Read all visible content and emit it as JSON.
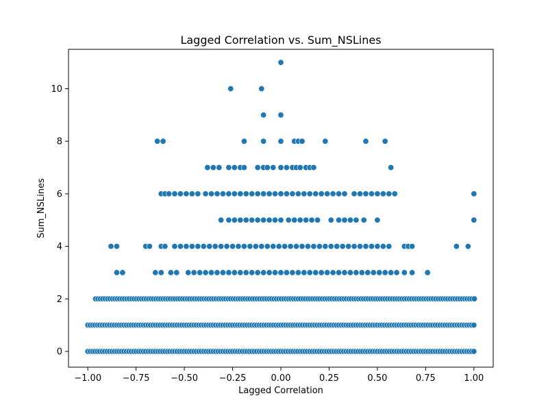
{
  "chart_data": {
    "type": "scatter",
    "title": "Lagged Correlation vs. Sum_NSLines",
    "xlabel": "Lagged Correlation",
    "ylabel": "Sum_NSLines",
    "xlim": [
      -1.1,
      1.1
    ],
    "ylim": [
      -0.6,
      11.5
    ],
    "x_ticks": [
      -1.0,
      -0.75,
      -0.5,
      -0.25,
      0.0,
      0.25,
      0.5,
      0.75,
      1.0
    ],
    "x_tick_labels": [
      "−1.00",
      "−0.75",
      "−0.50",
      "−0.25",
      "0.00",
      "0.25",
      "0.50",
      "0.75",
      "1.00"
    ],
    "y_ticks": [
      0,
      2,
      4,
      6,
      8,
      10
    ],
    "y_tick_labels": [
      "0",
      "2",
      "4",
      "6",
      "8",
      "10"
    ],
    "grid": false,
    "marker_color": "#1f77b4",
    "rows": [
      {
        "y": 0,
        "x_min": -1.0,
        "x_max": 1.0,
        "step": 0.0125
      },
      {
        "y": 1,
        "x_min": -1.0,
        "x_max": 1.0,
        "step": 0.0125
      },
      {
        "y": 2,
        "x_min": -0.96,
        "x_max": 1.0,
        "step": 0.0125
      }
    ],
    "points": [
      {
        "x": -0.85,
        "y": 3
      },
      {
        "x": -0.82,
        "y": 3
      },
      {
        "x": -0.65,
        "y": 3
      },
      {
        "x": -0.62,
        "y": 3
      },
      {
        "x": -0.57,
        "y": 3
      },
      {
        "x": -0.54,
        "y": 3
      },
      {
        "x": -0.48,
        "y": 3
      },
      {
        "x": -0.45,
        "y": 3
      },
      {
        "x": -0.42,
        "y": 3
      },
      {
        "x": -0.39,
        "y": 3
      },
      {
        "x": -0.36,
        "y": 3
      },
      {
        "x": -0.33,
        "y": 3
      },
      {
        "x": -0.3,
        "y": 3
      },
      {
        "x": -0.27,
        "y": 3
      },
      {
        "x": -0.24,
        "y": 3
      },
      {
        "x": -0.21,
        "y": 3
      },
      {
        "x": -0.18,
        "y": 3
      },
      {
        "x": -0.15,
        "y": 3
      },
      {
        "x": -0.12,
        "y": 3
      },
      {
        "x": -0.09,
        "y": 3
      },
      {
        "x": -0.06,
        "y": 3
      },
      {
        "x": -0.03,
        "y": 3
      },
      {
        "x": 0.0,
        "y": 3
      },
      {
        "x": 0.03,
        "y": 3
      },
      {
        "x": 0.06,
        "y": 3
      },
      {
        "x": 0.09,
        "y": 3
      },
      {
        "x": 0.12,
        "y": 3
      },
      {
        "x": 0.15,
        "y": 3
      },
      {
        "x": 0.18,
        "y": 3
      },
      {
        "x": 0.21,
        "y": 3
      },
      {
        "x": 0.24,
        "y": 3
      },
      {
        "x": 0.27,
        "y": 3
      },
      {
        "x": 0.3,
        "y": 3
      },
      {
        "x": 0.33,
        "y": 3
      },
      {
        "x": 0.36,
        "y": 3
      },
      {
        "x": 0.39,
        "y": 3
      },
      {
        "x": 0.42,
        "y": 3
      },
      {
        "x": 0.45,
        "y": 3
      },
      {
        "x": 0.48,
        "y": 3
      },
      {
        "x": 0.51,
        "y": 3
      },
      {
        "x": 0.54,
        "y": 3
      },
      {
        "x": 0.57,
        "y": 3
      },
      {
        "x": 0.6,
        "y": 3
      },
      {
        "x": 0.64,
        "y": 3
      },
      {
        "x": 0.68,
        "y": 3
      },
      {
        "x": 0.76,
        "y": 3
      },
      {
        "x": -0.88,
        "y": 4
      },
      {
        "x": -0.85,
        "y": 4
      },
      {
        "x": -0.7,
        "y": 4
      },
      {
        "x": -0.68,
        "y": 4
      },
      {
        "x": -0.62,
        "y": 4
      },
      {
        "x": -0.6,
        "y": 4
      },
      {
        "x": -0.55,
        "y": 4
      },
      {
        "x": -0.52,
        "y": 4
      },
      {
        "x": -0.49,
        "y": 4
      },
      {
        "x": -0.46,
        "y": 4
      },
      {
        "x": -0.43,
        "y": 4
      },
      {
        "x": -0.4,
        "y": 4
      },
      {
        "x": -0.37,
        "y": 4
      },
      {
        "x": -0.34,
        "y": 4
      },
      {
        "x": -0.31,
        "y": 4
      },
      {
        "x": -0.28,
        "y": 4
      },
      {
        "x": -0.25,
        "y": 4
      },
      {
        "x": -0.22,
        "y": 4
      },
      {
        "x": -0.19,
        "y": 4
      },
      {
        "x": -0.16,
        "y": 4
      },
      {
        "x": -0.13,
        "y": 4
      },
      {
        "x": -0.1,
        "y": 4
      },
      {
        "x": -0.07,
        "y": 4
      },
      {
        "x": -0.04,
        "y": 4
      },
      {
        "x": -0.01,
        "y": 4
      },
      {
        "x": 0.02,
        "y": 4
      },
      {
        "x": 0.05,
        "y": 4
      },
      {
        "x": 0.08,
        "y": 4
      },
      {
        "x": 0.11,
        "y": 4
      },
      {
        "x": 0.14,
        "y": 4
      },
      {
        "x": 0.17,
        "y": 4
      },
      {
        "x": 0.2,
        "y": 4
      },
      {
        "x": 0.23,
        "y": 4
      },
      {
        "x": 0.26,
        "y": 4
      },
      {
        "x": 0.29,
        "y": 4
      },
      {
        "x": 0.32,
        "y": 4
      },
      {
        "x": 0.35,
        "y": 4
      },
      {
        "x": 0.38,
        "y": 4
      },
      {
        "x": 0.41,
        "y": 4
      },
      {
        "x": 0.44,
        "y": 4
      },
      {
        "x": 0.47,
        "y": 4
      },
      {
        "x": 0.5,
        "y": 4
      },
      {
        "x": 0.53,
        "y": 4
      },
      {
        "x": 0.56,
        "y": 4
      },
      {
        "x": 0.64,
        "y": 4
      },
      {
        "x": 0.66,
        "y": 4
      },
      {
        "x": 0.68,
        "y": 4
      },
      {
        "x": 0.91,
        "y": 4
      },
      {
        "x": 0.97,
        "y": 4
      },
      {
        "x": -0.31,
        "y": 5
      },
      {
        "x": -0.27,
        "y": 5
      },
      {
        "x": -0.24,
        "y": 5
      },
      {
        "x": -0.21,
        "y": 5
      },
      {
        "x": -0.18,
        "y": 5
      },
      {
        "x": -0.15,
        "y": 5
      },
      {
        "x": -0.12,
        "y": 5
      },
      {
        "x": -0.09,
        "y": 5
      },
      {
        "x": -0.06,
        "y": 5
      },
      {
        "x": -0.03,
        "y": 5
      },
      {
        "x": 0.0,
        "y": 5
      },
      {
        "x": 0.04,
        "y": 5
      },
      {
        "x": 0.07,
        "y": 5
      },
      {
        "x": 0.1,
        "y": 5
      },
      {
        "x": 0.13,
        "y": 5
      },
      {
        "x": 0.16,
        "y": 5
      },
      {
        "x": 0.19,
        "y": 5
      },
      {
        "x": 0.26,
        "y": 5
      },
      {
        "x": 0.3,
        "y": 5
      },
      {
        "x": 0.33,
        "y": 5
      },
      {
        "x": 0.36,
        "y": 5
      },
      {
        "x": 0.39,
        "y": 5
      },
      {
        "x": 0.43,
        "y": 5
      },
      {
        "x": 0.5,
        "y": 5
      },
      {
        "x": 1.0,
        "y": 5
      },
      {
        "x": -0.62,
        "y": 6
      },
      {
        "x": -0.6,
        "y": 6
      },
      {
        "x": -0.58,
        "y": 6
      },
      {
        "x": -0.55,
        "y": 6
      },
      {
        "x": -0.52,
        "y": 6
      },
      {
        "x": -0.49,
        "y": 6
      },
      {
        "x": -0.46,
        "y": 6
      },
      {
        "x": -0.43,
        "y": 6
      },
      {
        "x": -0.39,
        "y": 6
      },
      {
        "x": -0.36,
        "y": 6
      },
      {
        "x": -0.33,
        "y": 6
      },
      {
        "x": -0.3,
        "y": 6
      },
      {
        "x": -0.27,
        "y": 6
      },
      {
        "x": -0.24,
        "y": 6
      },
      {
        "x": -0.21,
        "y": 6
      },
      {
        "x": -0.18,
        "y": 6
      },
      {
        "x": -0.15,
        "y": 6
      },
      {
        "x": -0.12,
        "y": 6
      },
      {
        "x": -0.09,
        "y": 6
      },
      {
        "x": -0.06,
        "y": 6
      },
      {
        "x": -0.03,
        "y": 6
      },
      {
        "x": 0.0,
        "y": 6
      },
      {
        "x": 0.03,
        "y": 6
      },
      {
        "x": 0.06,
        "y": 6
      },
      {
        "x": 0.09,
        "y": 6
      },
      {
        "x": 0.12,
        "y": 6
      },
      {
        "x": 0.15,
        "y": 6
      },
      {
        "x": 0.18,
        "y": 6
      },
      {
        "x": 0.21,
        "y": 6
      },
      {
        "x": 0.24,
        "y": 6
      },
      {
        "x": 0.27,
        "y": 6
      },
      {
        "x": 0.3,
        "y": 6
      },
      {
        "x": 0.33,
        "y": 6
      },
      {
        "x": 0.38,
        "y": 6
      },
      {
        "x": 0.41,
        "y": 6
      },
      {
        "x": 0.44,
        "y": 6
      },
      {
        "x": 0.47,
        "y": 6
      },
      {
        "x": 0.5,
        "y": 6
      },
      {
        "x": 0.53,
        "y": 6
      },
      {
        "x": 0.56,
        "y": 6
      },
      {
        "x": 0.59,
        "y": 6
      },
      {
        "x": 1.0,
        "y": 6
      },
      {
        "x": -0.38,
        "y": 7
      },
      {
        "x": -0.35,
        "y": 7
      },
      {
        "x": -0.32,
        "y": 7
      },
      {
        "x": -0.27,
        "y": 7
      },
      {
        "x": -0.24,
        "y": 7
      },
      {
        "x": -0.21,
        "y": 7
      },
      {
        "x": -0.19,
        "y": 7
      },
      {
        "x": -0.12,
        "y": 7
      },
      {
        "x": -0.09,
        "y": 7
      },
      {
        "x": -0.07,
        "y": 7
      },
      {
        "x": -0.04,
        "y": 7
      },
      {
        "x": 0.0,
        "y": 7
      },
      {
        "x": 0.03,
        "y": 7
      },
      {
        "x": 0.06,
        "y": 7
      },
      {
        "x": 0.08,
        "y": 7
      },
      {
        "x": 0.1,
        "y": 7
      },
      {
        "x": 0.13,
        "y": 7
      },
      {
        "x": 0.15,
        "y": 7
      },
      {
        "x": 0.17,
        "y": 7
      },
      {
        "x": 0.57,
        "y": 7
      },
      {
        "x": -0.64,
        "y": 8
      },
      {
        "x": -0.61,
        "y": 8
      },
      {
        "x": -0.19,
        "y": 8
      },
      {
        "x": -0.09,
        "y": 8
      },
      {
        "x": 0.0,
        "y": 8
      },
      {
        "x": 0.07,
        "y": 8
      },
      {
        "x": 0.09,
        "y": 8
      },
      {
        "x": 0.11,
        "y": 8
      },
      {
        "x": 0.23,
        "y": 8
      },
      {
        "x": 0.44,
        "y": 8
      },
      {
        "x": 0.54,
        "y": 8
      },
      {
        "x": -0.09,
        "y": 9
      },
      {
        "x": 0.0,
        "y": 9
      },
      {
        "x": -0.26,
        "y": 10
      },
      {
        "x": -0.1,
        "y": 10
      },
      {
        "x": 0.0,
        "y": 11
      }
    ]
  }
}
